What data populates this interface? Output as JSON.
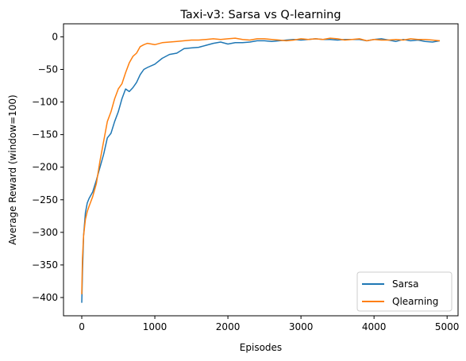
{
  "chart_data": {
    "type": "line",
    "title": "Taxi-v3: Sarsa vs Q-learning",
    "xlabel": "Episodes",
    "ylabel": "Average Reward (window=100)",
    "xlim": [
      -250,
      5150
    ],
    "ylim": [
      -428,
      20
    ],
    "xticks": [
      0,
      1000,
      2000,
      3000,
      4000,
      5000
    ],
    "yticks": [
      0,
      -50,
      -100,
      -150,
      -200,
      -250,
      -300,
      -350,
      -400
    ],
    "grid": false,
    "legend_position": "lower-right",
    "series": [
      {
        "name": "Sarsa",
        "color": "#1f77b4",
        "x": [
          0,
          10,
          25,
          50,
          75,
          100,
          150,
          200,
          250,
          300,
          350,
          400,
          450,
          500,
          550,
          600,
          650,
          700,
          750,
          800,
          850,
          900,
          1000,
          1100,
          1200,
          1300,
          1400,
          1500,
          1600,
          1700,
          1800,
          1900,
          2000,
          2100,
          2200,
          2300,
          2400,
          2500,
          2600,
          2700,
          2800,
          2900,
          3000,
          3100,
          3200,
          3300,
          3400,
          3500,
          3600,
          3700,
          3800,
          3900,
          4000,
          4100,
          4200,
          4300,
          4400,
          4500,
          4600,
          4700,
          4800,
          4900
        ],
        "y": [
          -408,
          -360,
          -305,
          -270,
          -255,
          -248,
          -238,
          -220,
          -200,
          -180,
          -155,
          -148,
          -130,
          -115,
          -95,
          -80,
          -84,
          -78,
          -70,
          -58,
          -50,
          -47,
          -42,
          -33,
          -27,
          -25,
          -18,
          -17,
          -16,
          -13,
          -10,
          -8,
          -11,
          -9,
          -9,
          -8,
          -6,
          -6,
          -7,
          -6,
          -5,
          -4,
          -5,
          -4,
          -3,
          -4,
          -4,
          -5,
          -4,
          -4,
          -4,
          -6,
          -4,
          -3,
          -5,
          -7,
          -4,
          -6,
          -5,
          -7,
          -8,
          -6
        ]
      },
      {
        "name": "Qlearning",
        "color": "#ff7f0e",
        "x": [
          0,
          10,
          25,
          50,
          75,
          100,
          150,
          200,
          250,
          300,
          350,
          400,
          450,
          500,
          550,
          600,
          650,
          700,
          750,
          800,
          850,
          900,
          1000,
          1100,
          1200,
          1300,
          1400,
          1500,
          1600,
          1700,
          1800,
          1900,
          2000,
          2100,
          2200,
          2300,
          2400,
          2500,
          2600,
          2700,
          2800,
          2900,
          3000,
          3100,
          3200,
          3300,
          3400,
          3500,
          3600,
          3700,
          3800,
          3900,
          4000,
          4100,
          4200,
          4300,
          4400,
          4500,
          4600,
          4700,
          4800,
          4900
        ],
        "y": [
          -395,
          -340,
          -305,
          -280,
          -268,
          -260,
          -245,
          -225,
          -190,
          -160,
          -130,
          -115,
          -95,
          -80,
          -72,
          -55,
          -40,
          -30,
          -25,
          -15,
          -12,
          -10,
          -12,
          -9,
          -8,
          -7,
          -6,
          -5,
          -5,
          -4,
          -3,
          -4,
          -3,
          -2,
          -4,
          -5,
          -3,
          -3,
          -4,
          -5,
          -6,
          -5,
          -3,
          -4,
          -3,
          -4,
          -2,
          -3,
          -5,
          -4,
          -3,
          -6,
          -4,
          -5,
          -5,
          -4,
          -5,
          -3,
          -4,
          -4,
          -5,
          -6
        ]
      }
    ]
  }
}
